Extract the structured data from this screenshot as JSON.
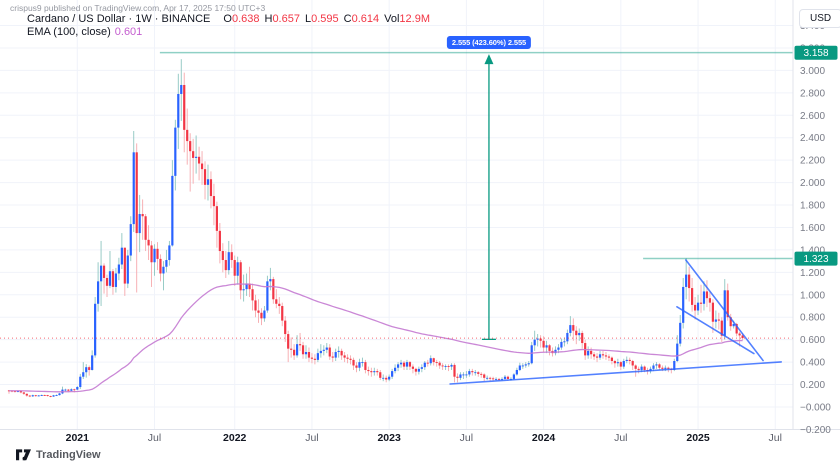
{
  "watermark": "crispus9 published on TradingView.com, Apr 17, 2025 17:50 UTC+3",
  "legend": {
    "title": "Cardano / US Dollar · 1W · BINANCE",
    "ohlc": {
      "o_label": "O",
      "o": "0.638",
      "h_label": "H",
      "h": "0.657",
      "l_label": "L",
      "l": "0.595",
      "c_label": "C",
      "c": "0.614",
      "vol_label": "Vol",
      "vol": "12.9M"
    },
    "indicator": {
      "name": "EMA (100, close)",
      "value": "0.601"
    }
  },
  "toolbar": {
    "currency_label": "USD"
  },
  "range_label": {
    "text": "2.555 (423.60%) 2.555"
  },
  "branding": {
    "name": "TradingView"
  },
  "colors": {
    "up": "#2962ff",
    "down": "#f23645",
    "up_wick": "#8cc5c0",
    "down_wick": "#f6a8ac",
    "ema": "#c47ad1",
    "grid": "#f0f3fa",
    "axis_border": "#e0e3eb",
    "axis_text": "#787b86",
    "year_text": "#131722",
    "month_text": "#5d606b",
    "level": "#089981",
    "badge": "#089981",
    "badge_text": "#ffffff",
    "drawing": "#2962ff",
    "arrow": "#089981",
    "price_line": "#f23645"
  },
  "drawings": {
    "range_arrow": {
      "week": 161.6,
      "from_price": 0.603,
      "to_price": 3.158,
      "label": "2.555 (423.60%) 2.555"
    },
    "h_levels": [
      {
        "price": 3.158,
        "from_week": 50.8,
        "label": "3.158"
      },
      {
        "price": 1.323,
        "from_week": 213.5,
        "label": "1.323"
      }
    ],
    "trend_lines": [
      {
        "name": "ascending-support",
        "x1_week": 148.5,
        "p1": 0.205,
        "x2_week": 260.0,
        "p2": 0.402
      },
      {
        "name": "wedge-upper",
        "x1_week": 227.9,
        "p1": 1.31,
        "x2_week": 253.9,
        "p2": 0.414
      },
      {
        "name": "wedge-lower",
        "x1_week": 224.9,
        "p1": 0.893,
        "x2_week": 250.8,
        "p2": 0.476
      }
    ],
    "price_line": {
      "price": 0.614
    }
  },
  "chart_data": {
    "type": "candlestick",
    "symbol": "Cardano / US Dollar",
    "exchange": "BINANCE",
    "interval": "1W",
    "first_candle_week": "2020-07-20",
    "open_rule": "open equals previous close",
    "first_open": 0.148,
    "ema_period": 100,
    "ema_current": 0.601,
    "ylim": [
      -0.286,
      3.497
    ],
    "y_ticks": [
      "3.400",
      "3.200",
      "3.000",
      "2.800",
      "2.600",
      "2.400",
      "2.200",
      "2.000",
      "1.800",
      "1.600",
      "1.400",
      "1.200",
      "1.000",
      "0.800",
      "0.600",
      "0.400",
      "0.200",
      "−0.000",
      "−0.200"
    ],
    "x_ticks": [
      {
        "label": "2021",
        "week": 23,
        "bold": true
      },
      {
        "label": "Jul",
        "week": 49,
        "bold": false
      },
      {
        "label": "2022",
        "week": 76,
        "bold": true
      },
      {
        "label": "Jul",
        "week": 102,
        "bold": false
      },
      {
        "label": "2023",
        "week": 128,
        "bold": true
      },
      {
        "label": "Jul",
        "week": 154,
        "bold": false
      },
      {
        "label": "2024",
        "week": 180,
        "bold": true
      },
      {
        "label": "Jul",
        "week": 206,
        "bold": false
      },
      {
        "label": "2025",
        "week": 232,
        "bold": true
      },
      {
        "label": "Jul",
        "week": 258,
        "bold": false
      }
    ],
    "columns": [
      "high",
      "low",
      "close"
    ],
    "candles": [
      [
        0.15,
        0.118,
        0.145
      ],
      [
        0.152,
        0.132,
        0.143
      ],
      [
        0.146,
        0.128,
        0.139
      ],
      [
        0.149,
        0.131,
        0.142
      ],
      [
        0.145,
        0.122,
        0.13
      ],
      [
        0.133,
        0.108,
        0.118
      ],
      [
        0.12,
        0.092,
        0.102
      ],
      [
        0.106,
        0.088,
        0.095
      ],
      [
        0.11,
        0.09,
        0.105
      ],
      [
        0.108,
        0.092,
        0.098
      ],
      [
        0.107,
        0.094,
        0.103
      ],
      [
        0.111,
        0.098,
        0.107
      ],
      [
        0.11,
        0.1,
        0.106
      ],
      [
        0.108,
        0.093,
        0.098
      ],
      [
        0.101,
        0.087,
        0.093
      ],
      [
        0.108,
        0.09,
        0.104
      ],
      [
        0.111,
        0.099,
        0.106
      ],
      [
        0.126,
        0.102,
        0.121
      ],
      [
        0.182,
        0.115,
        0.155
      ],
      [
        0.163,
        0.138,
        0.155
      ],
      [
        0.16,
        0.131,
        0.145
      ],
      [
        0.166,
        0.14,
        0.158
      ],
      [
        0.163,
        0.13,
        0.155
      ],
      [
        0.186,
        0.15,
        0.178
      ],
      [
        0.295,
        0.16,
        0.27
      ],
      [
        0.4,
        0.25,
        0.31
      ],
      [
        0.382,
        0.262,
        0.355
      ],
      [
        0.37,
        0.28,
        0.33
      ],
      [
        0.505,
        0.325,
        0.46
      ],
      [
        0.98,
        0.44,
        0.92
      ],
      [
        1.29,
        0.85,
        1.12
      ],
      [
        1.48,
        0.9,
        1.26
      ],
      [
        1.28,
        1.01,
        1.15
      ],
      [
        1.18,
        0.98,
        1.08
      ],
      [
        1.39,
        1.06,
        1.21
      ],
      [
        1.23,
        1.0,
        1.07
      ],
      [
        1.24,
        1.02,
        1.19
      ],
      [
        1.33,
        1.13,
        1.27
      ],
      [
        1.55,
        1.23,
        1.42
      ],
      [
        1.42,
        0.99,
        1.1
      ],
      [
        1.4,
        1.06,
        1.35
      ],
      [
        1.7,
        1.3,
        1.63
      ],
      [
        2.46,
        1.56,
        2.27
      ],
      [
        2.35,
        1.02,
        1.55
      ],
      [
        1.89,
        1.38,
        1.72
      ],
      [
        1.85,
        1.49,
        1.7
      ],
      [
        1.72,
        1.39,
        1.49
      ],
      [
        1.62,
        1.31,
        1.44
      ],
      [
        1.48,
        1.07,
        1.29
      ],
      [
        1.45,
        1.17,
        1.41
      ],
      [
        1.47,
        1.22,
        1.32
      ],
      [
        1.36,
        1.12,
        1.19
      ],
      [
        1.3,
        1.04,
        1.25
      ],
      [
        1.4,
        1.2,
        1.31
      ],
      [
        1.48,
        1.26,
        1.44
      ],
      [
        2.2,
        1.43,
        2.06
      ],
      [
        2.56,
        1.93,
        2.49
      ],
      [
        2.97,
        2.3,
        2.79
      ],
      [
        3.1,
        2.55,
        2.87
      ],
      [
        2.98,
        2.27,
        2.47
      ],
      [
        2.66,
        2.16,
        2.37
      ],
      [
        2.44,
        1.92,
        2.28
      ],
      [
        2.39,
        1.99,
        2.22
      ],
      [
        2.42,
        2.08,
        2.23
      ],
      [
        2.32,
        2.02,
        2.17
      ],
      [
        2.28,
        1.98,
        2.12
      ],
      [
        2.19,
        1.85,
        1.98
      ],
      [
        2.16,
        1.84,
        2.03
      ],
      [
        2.1,
        1.77,
        1.88
      ],
      [
        1.99,
        1.62,
        1.79
      ],
      [
        1.83,
        1.42,
        1.57
      ],
      [
        1.64,
        1.28,
        1.39
      ],
      [
        1.46,
        1.2,
        1.31
      ],
      [
        1.39,
        1.15,
        1.22
      ],
      [
        1.48,
        1.18,
        1.38
      ],
      [
        1.45,
        1.24,
        1.31
      ],
      [
        1.35,
        1.08,
        1.17
      ],
      [
        1.34,
        1.09,
        1.29
      ],
      [
        1.31,
        0.96,
        1.04
      ],
      [
        1.18,
        0.94,
        1.05
      ],
      [
        1.19,
        0.99,
        1.1
      ],
      [
        1.25,
        0.98,
        1.05
      ],
      [
        1.1,
        0.86,
        0.95
      ],
      [
        1.0,
        0.8,
        0.86
      ],
      [
        0.96,
        0.75,
        0.84
      ],
      [
        0.88,
        0.73,
        0.79
      ],
      [
        0.9,
        0.76,
        0.86
      ],
      [
        1.17,
        0.84,
        1.12
      ],
      [
        1.24,
        1.04,
        1.14
      ],
      [
        1.16,
        0.92,
        0.96
      ],
      [
        1.05,
        0.88,
        0.92
      ],
      [
        0.98,
        0.83,
        0.9
      ],
      [
        0.93,
        0.72,
        0.77
      ],
      [
        0.81,
        0.58,
        0.65
      ],
      [
        0.68,
        0.4,
        0.52
      ],
      [
        0.62,
        0.44,
        0.51
      ],
      [
        0.56,
        0.42,
        0.46
      ],
      [
        0.64,
        0.44,
        0.56
      ],
      [
        0.66,
        0.5,
        0.55
      ],
      [
        0.58,
        0.43,
        0.47
      ],
      [
        0.55,
        0.43,
        0.49
      ],
      [
        0.53,
        0.4,
        0.44
      ],
      [
        0.48,
        0.39,
        0.43
      ],
      [
        0.47,
        0.38,
        0.42
      ],
      [
        0.52,
        0.4,
        0.48
      ],
      [
        0.56,
        0.44,
        0.5
      ],
      [
        0.55,
        0.46,
        0.51
      ],
      [
        0.57,
        0.48,
        0.53
      ],
      [
        0.56,
        0.42,
        0.45
      ],
      [
        0.49,
        0.4,
        0.44
      ],
      [
        0.52,
        0.41,
        0.49
      ],
      [
        0.54,
        0.44,
        0.5
      ],
      [
        0.52,
        0.42,
        0.46
      ],
      [
        0.49,
        0.4,
        0.44
      ],
      [
        0.47,
        0.39,
        0.43
      ],
      [
        0.46,
        0.38,
        0.42
      ],
      [
        0.44,
        0.33,
        0.37
      ],
      [
        0.4,
        0.31,
        0.35
      ],
      [
        0.43,
        0.32,
        0.4
      ],
      [
        0.44,
        0.36,
        0.4
      ],
      [
        0.42,
        0.3,
        0.33
      ],
      [
        0.36,
        0.28,
        0.32
      ],
      [
        0.35,
        0.27,
        0.31
      ],
      [
        0.35,
        0.28,
        0.32
      ],
      [
        0.34,
        0.28,
        0.31
      ],
      [
        0.33,
        0.24,
        0.26
      ],
      [
        0.29,
        0.23,
        0.26
      ],
      [
        0.28,
        0.22,
        0.245
      ],
      [
        0.29,
        0.23,
        0.27
      ],
      [
        0.34,
        0.25,
        0.32
      ],
      [
        0.38,
        0.3,
        0.35
      ],
      [
        0.4,
        0.32,
        0.38
      ],
      [
        0.42,
        0.35,
        0.395
      ],
      [
        0.41,
        0.33,
        0.36
      ],
      [
        0.42,
        0.33,
        0.4
      ],
      [
        0.41,
        0.33,
        0.36
      ],
      [
        0.38,
        0.3,
        0.34
      ],
      [
        0.35,
        0.28,
        0.315
      ],
      [
        0.36,
        0.29,
        0.34
      ],
      [
        0.38,
        0.31,
        0.355
      ],
      [
        0.41,
        0.33,
        0.395
      ],
      [
        0.42,
        0.36,
        0.39
      ],
      [
        0.46,
        0.37,
        0.435
      ],
      [
        0.44,
        0.37,
        0.4
      ],
      [
        0.42,
        0.36,
        0.395
      ],
      [
        0.41,
        0.34,
        0.37
      ],
      [
        0.39,
        0.33,
        0.365
      ],
      [
        0.38,
        0.33,
        0.365
      ],
      [
        0.38,
        0.32,
        0.36
      ],
      [
        0.39,
        0.33,
        0.375
      ],
      [
        0.39,
        0.22,
        0.27
      ],
      [
        0.3,
        0.22,
        0.26
      ],
      [
        0.31,
        0.24,
        0.29
      ],
      [
        0.31,
        0.25,
        0.29
      ],
      [
        0.32,
        0.26,
        0.29
      ],
      [
        0.34,
        0.27,
        0.32
      ],
      [
        0.34,
        0.28,
        0.31
      ],
      [
        0.33,
        0.28,
        0.31
      ],
      [
        0.32,
        0.27,
        0.295
      ],
      [
        0.31,
        0.26,
        0.29
      ],
      [
        0.3,
        0.23,
        0.26
      ],
      [
        0.28,
        0.24,
        0.26
      ],
      [
        0.27,
        0.23,
        0.255
      ],
      [
        0.27,
        0.23,
        0.25
      ],
      [
        0.265,
        0.235,
        0.25
      ],
      [
        0.26,
        0.23,
        0.245
      ],
      [
        0.265,
        0.235,
        0.25
      ],
      [
        0.285,
        0.24,
        0.27
      ],
      [
        0.28,
        0.235,
        0.25
      ],
      [
        0.265,
        0.235,
        0.25
      ],
      [
        0.3,
        0.24,
        0.29
      ],
      [
        0.35,
        0.28,
        0.33
      ],
      [
        0.395,
        0.32,
        0.37
      ],
      [
        0.39,
        0.34,
        0.37
      ],
      [
        0.4,
        0.35,
        0.38
      ],
      [
        0.41,
        0.36,
        0.39
      ],
      [
        0.58,
        0.38,
        0.55
      ],
      [
        0.68,
        0.5,
        0.6
      ],
      [
        0.65,
        0.54,
        0.61
      ],
      [
        0.64,
        0.53,
        0.59
      ],
      [
        0.63,
        0.49,
        0.53
      ],
      [
        0.59,
        0.48,
        0.55
      ],
      [
        0.56,
        0.46,
        0.5
      ],
      [
        0.53,
        0.45,
        0.48
      ],
      [
        0.54,
        0.46,
        0.51
      ],
      [
        0.56,
        0.48,
        0.53
      ],
      [
        0.61,
        0.51,
        0.58
      ],
      [
        0.62,
        0.54,
        0.585
      ],
      [
        0.69,
        0.56,
        0.66
      ],
      [
        0.81,
        0.63,
        0.73
      ],
      [
        0.79,
        0.59,
        0.68
      ],
      [
        0.72,
        0.56,
        0.64
      ],
      [
        0.7,
        0.59,
        0.66
      ],
      [
        0.68,
        0.52,
        0.57
      ],
      [
        0.6,
        0.42,
        0.46
      ],
      [
        0.54,
        0.43,
        0.5
      ],
      [
        0.53,
        0.43,
        0.47
      ],
      [
        0.49,
        0.42,
        0.45
      ],
      [
        0.48,
        0.4,
        0.44
      ],
      [
        0.5,
        0.42,
        0.47
      ],
      [
        0.5,
        0.43,
        0.46
      ],
      [
        0.49,
        0.42,
        0.45
      ],
      [
        0.47,
        0.41,
        0.44
      ],
      [
        0.45,
        0.38,
        0.41
      ],
      [
        0.42,
        0.35,
        0.39
      ],
      [
        0.43,
        0.36,
        0.4
      ],
      [
        0.41,
        0.33,
        0.36
      ],
      [
        0.43,
        0.34,
        0.41
      ],
      [
        0.45,
        0.39,
        0.42
      ],
      [
        0.44,
        0.38,
        0.41
      ],
      [
        0.42,
        0.33,
        0.37
      ],
      [
        0.38,
        0.27,
        0.34
      ],
      [
        0.36,
        0.3,
        0.33
      ],
      [
        0.38,
        0.31,
        0.36
      ],
      [
        0.37,
        0.31,
        0.33
      ],
      [
        0.35,
        0.29,
        0.32
      ],
      [
        0.36,
        0.3,
        0.34
      ],
      [
        0.39,
        0.32,
        0.37
      ],
      [
        0.4,
        0.34,
        0.38
      ],
      [
        0.39,
        0.33,
        0.35
      ],
      [
        0.37,
        0.32,
        0.34
      ],
      [
        0.37,
        0.32,
        0.35
      ],
      [
        0.36,
        0.31,
        0.34
      ],
      [
        0.35,
        0.3,
        0.33
      ],
      [
        0.43,
        0.32,
        0.41
      ],
      [
        0.64,
        0.4,
        0.565
      ],
      [
        0.82,
        0.54,
        0.75
      ],
      [
        1.15,
        0.7,
        1.07
      ],
      [
        1.326,
        0.96,
        1.18
      ],
      [
        1.25,
        0.94,
        1.06
      ],
      [
        1.15,
        0.85,
        0.91
      ],
      [
        0.98,
        0.78,
        0.86
      ],
      [
        1.0,
        0.82,
        0.93
      ],
      [
        1.09,
        0.84,
        0.92
      ],
      [
        1.12,
        0.86,
        1.03
      ],
      [
        1.13,
        0.89,
        0.97
      ],
      [
        1.03,
        0.85,
        0.93
      ],
      [
        0.96,
        0.66,
        0.76
      ],
      [
        0.86,
        0.7,
        0.78
      ],
      [
        0.84,
        0.69,
        0.77
      ],
      [
        0.8,
        0.58,
        0.635
      ],
      [
        1.14,
        0.6,
        1.04
      ],
      [
        1.1,
        0.77,
        0.8
      ],
      [
        0.83,
        0.68,
        0.72
      ],
      [
        0.77,
        0.7,
        0.74
      ],
      [
        0.75,
        0.63,
        0.655
      ],
      [
        0.67,
        0.54,
        0.638
      ],
      [
        0.657,
        0.595,
        0.614
      ]
    ]
  }
}
